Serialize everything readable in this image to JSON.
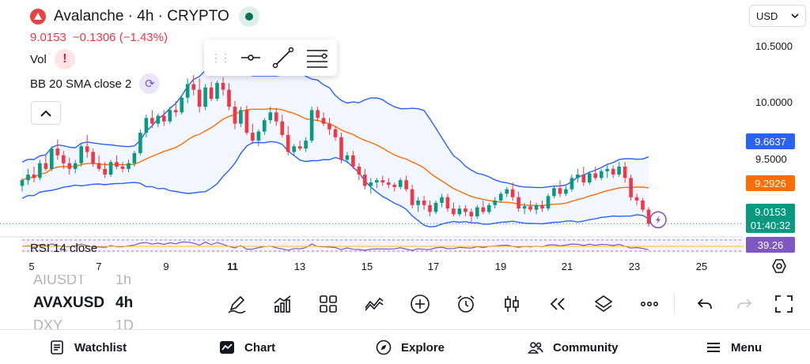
{
  "header": {
    "title": "Avalanche · 4h · CRYPTO",
    "price": "9.0153",
    "change": "−0.1306 (−1.43%)",
    "currency": "USD"
  },
  "indicators": {
    "vol": "Vol",
    "vol_warning": "!",
    "bb": "BB 20 SMA close 2",
    "rsi": "RSI 14 close"
  },
  "price_axis": {
    "labels": [
      "10.5000",
      "10.0000",
      "9.5000"
    ],
    "tags": {
      "upper_band": "9.6637",
      "basis": "9.2926",
      "last_price": "9.0153",
      "countdown": "01:40:32",
      "rsi_value": "39.26"
    }
  },
  "time_axis": [
    "5",
    "7",
    "9",
    "11",
    "13",
    "15",
    "17",
    "19",
    "21",
    "23",
    "25"
  ],
  "symbols": {
    "above": "AIUSDT",
    "above_interval": "1h",
    "current": "AVAXUSD",
    "current_interval": "4h",
    "below": "DXY",
    "below_interval": "1D"
  },
  "tools": [
    {
      "name": "drawing-tools",
      "icon": "pen-icon"
    },
    {
      "name": "indicators",
      "icon": "chart-growth-icon"
    },
    {
      "name": "templates",
      "icon": "grid-icon"
    },
    {
      "name": "compare",
      "icon": "compare-icon"
    },
    {
      "name": "add",
      "icon": "plus-circle-icon"
    },
    {
      "name": "alert",
      "icon": "alarm-icon"
    },
    {
      "name": "chart-type",
      "icon": "candles-icon"
    },
    {
      "name": "replay",
      "icon": "rewind-icon"
    },
    {
      "name": "layers",
      "icon": "layers-icon"
    },
    {
      "name": "more",
      "icon": "more-icon"
    }
  ],
  "nav": {
    "watchlist": "Watchlist",
    "chart": "Chart",
    "explore": "Explore",
    "community": "Community",
    "menu": "Menu"
  },
  "colors": {
    "up": "#089981",
    "down": "#f23645",
    "basis": "#ff6d00",
    "band": "#2962ff",
    "rsi": "#7e57c2"
  },
  "chart_data": {
    "type": "candlestick",
    "symbol": "AVAXUSD",
    "interval": "4h",
    "ylim": [
      8.92,
      10.7
    ],
    "candles": [
      [
        9.35,
        9.42,
        9.3,
        9.4
      ],
      [
        9.4,
        9.5,
        9.36,
        9.45
      ],
      [
        9.45,
        9.52,
        9.38,
        9.42
      ],
      [
        9.42,
        9.58,
        9.4,
        9.55
      ],
      [
        9.55,
        9.62,
        9.48,
        9.5
      ],
      [
        9.5,
        9.7,
        9.48,
        9.68
      ],
      [
        9.68,
        9.76,
        9.58,
        9.62
      ],
      [
        9.62,
        9.66,
        9.5,
        9.55
      ],
      [
        9.55,
        9.6,
        9.45,
        9.5
      ],
      [
        9.5,
        9.58,
        9.46,
        9.55
      ],
      [
        9.55,
        9.72,
        9.52,
        9.7
      ],
      [
        9.7,
        9.8,
        9.6,
        9.65
      ],
      [
        9.65,
        9.68,
        9.52,
        9.55
      ],
      [
        9.55,
        9.62,
        9.48,
        9.5
      ],
      [
        9.5,
        9.56,
        9.42,
        9.45
      ],
      [
        9.45,
        9.58,
        9.43,
        9.56
      ],
      [
        9.56,
        9.62,
        9.5,
        9.52
      ],
      [
        9.52,
        9.56,
        9.47,
        9.5
      ],
      [
        9.5,
        9.58,
        9.47,
        9.55
      ],
      [
        9.55,
        9.66,
        9.52,
        9.64
      ],
      [
        9.64,
        9.85,
        9.62,
        9.82
      ],
      [
        9.82,
        9.98,
        9.78,
        9.95
      ],
      [
        9.95,
        10.02,
        9.86,
        9.9
      ],
      [
        9.9,
        9.99,
        9.87,
        9.97
      ],
      [
        9.97,
        10.02,
        9.88,
        9.92
      ],
      [
        9.92,
        10.05,
        9.9,
        10.02
      ],
      [
        10.02,
        10.1,
        9.96,
        10.0
      ],
      [
        10.0,
        10.15,
        9.98,
        10.13
      ],
      [
        10.13,
        10.3,
        10.08,
        10.25
      ],
      [
        10.25,
        10.33,
        10.15,
        10.2
      ],
      [
        10.2,
        10.3,
        10.0,
        10.05
      ],
      [
        10.05,
        10.25,
        10.02,
        10.22
      ],
      [
        10.22,
        10.27,
        10.1,
        10.12
      ],
      [
        10.12,
        10.28,
        10.1,
        10.26
      ],
      [
        10.26,
        10.31,
        10.15,
        10.2
      ],
      [
        10.2,
        10.26,
        10.02,
        10.05
      ],
      [
        10.05,
        10.1,
        9.85,
        9.9
      ],
      [
        9.9,
        10.05,
        9.87,
        10.02
      ],
      [
        10.02,
        10.06,
        9.8,
        9.82
      ],
      [
        9.82,
        9.9,
        9.72,
        9.75
      ],
      [
        9.75,
        9.85,
        9.7,
        9.83
      ],
      [
        9.83,
        9.95,
        9.8,
        9.93
      ],
      [
        9.93,
        10.05,
        9.9,
        10.0
      ],
      [
        10.0,
        10.04,
        9.88,
        9.92
      ],
      [
        9.92,
        9.98,
        9.78,
        9.8
      ],
      [
        9.8,
        9.88,
        9.62,
        9.65
      ],
      [
        9.65,
        9.72,
        9.62,
        9.7
      ],
      [
        9.7,
        9.75,
        9.66,
        9.68
      ],
      [
        9.68,
        9.78,
        9.65,
        9.75
      ],
      [
        9.75,
        10.05,
        9.73,
        10.02
      ],
      [
        10.02,
        10.05,
        9.92,
        9.95
      ],
      [
        9.95,
        10.0,
        9.88,
        9.9
      ],
      [
        9.9,
        9.95,
        9.8,
        9.85
      ],
      [
        9.85,
        9.88,
        9.75,
        9.78
      ],
      [
        9.78,
        9.82,
        9.55,
        9.58
      ],
      [
        9.58,
        9.65,
        9.55,
        9.62
      ],
      [
        9.62,
        9.66,
        9.5,
        9.52
      ],
      [
        9.52,
        9.55,
        9.4,
        9.45
      ],
      [
        9.45,
        9.5,
        9.32,
        9.35
      ],
      [
        9.35,
        9.42,
        9.28,
        9.38
      ],
      [
        9.38,
        9.42,
        9.33,
        9.4
      ],
      [
        9.4,
        9.44,
        9.35,
        9.38
      ],
      [
        9.38,
        9.42,
        9.33,
        9.36
      ],
      [
        9.36,
        9.38,
        9.3,
        9.34
      ],
      [
        9.34,
        9.42,
        9.32,
        9.4
      ],
      [
        9.4,
        9.44,
        9.3,
        9.32
      ],
      [
        9.32,
        9.36,
        9.15,
        9.18
      ],
      [
        9.18,
        9.25,
        9.12,
        9.22
      ],
      [
        9.22,
        9.26,
        9.14,
        9.18
      ],
      [
        9.18,
        9.22,
        9.08,
        9.12
      ],
      [
        9.12,
        9.22,
        9.1,
        9.2
      ],
      [
        9.2,
        9.28,
        9.16,
        9.25
      ],
      [
        9.25,
        9.28,
        9.12,
        9.15
      ],
      [
        9.15,
        9.2,
        9.08,
        9.1
      ],
      [
        9.1,
        9.18,
        9.08,
        9.15
      ],
      [
        9.15,
        9.18,
        9.08,
        9.12
      ],
      [
        9.12,
        9.15,
        9.02,
        9.08
      ],
      [
        9.08,
        9.18,
        9.06,
        9.16
      ],
      [
        9.16,
        9.22,
        9.1,
        9.12
      ],
      [
        9.12,
        9.2,
        9.1,
        9.18
      ],
      [
        9.18,
        9.25,
        9.15,
        9.22
      ],
      [
        9.22,
        9.3,
        9.2,
        9.28
      ],
      [
        9.28,
        9.34,
        9.25,
        9.32
      ],
      [
        9.32,
        9.38,
        9.22,
        9.25
      ],
      [
        9.25,
        9.3,
        9.12,
        9.15
      ],
      [
        9.15,
        9.2,
        9.1,
        9.17
      ],
      [
        9.17,
        9.22,
        9.12,
        9.14
      ],
      [
        9.14,
        9.2,
        9.1,
        9.18
      ],
      [
        9.18,
        9.22,
        9.12,
        9.15
      ],
      [
        9.15,
        9.28,
        9.13,
        9.26
      ],
      [
        9.26,
        9.35,
        9.24,
        9.33
      ],
      [
        9.33,
        9.4,
        9.25,
        9.28
      ],
      [
        9.28,
        9.35,
        9.26,
        9.32
      ],
      [
        9.32,
        9.45,
        9.3,
        9.42
      ],
      [
        9.42,
        9.5,
        9.38,
        9.45
      ],
      [
        9.45,
        9.52,
        9.35,
        9.38
      ],
      [
        9.38,
        9.48,
        9.36,
        9.46
      ],
      [
        9.46,
        9.52,
        9.4,
        9.42
      ],
      [
        9.42,
        9.5,
        9.4,
        9.48
      ],
      [
        9.48,
        9.53,
        9.42,
        9.5
      ],
      [
        9.5,
        9.53,
        9.42,
        9.45
      ],
      [
        9.45,
        9.56,
        9.43,
        9.52
      ],
      [
        9.52,
        9.56,
        9.38,
        9.42
      ],
      [
        9.42,
        9.45,
        9.22,
        9.25
      ],
      [
        9.25,
        9.28,
        9.18,
        9.22
      ],
      [
        9.22,
        9.24,
        9.12,
        9.14
      ],
      [
        9.14,
        9.16,
        8.99,
        9.0153
      ]
    ],
    "bollinger_note": "BB 20 SMA close 2 (upper/basis/lower bands)",
    "bb_upper_last": 9.6637,
    "bb_basis_last": 9.2926,
    "rsi_last": 39.26
  }
}
